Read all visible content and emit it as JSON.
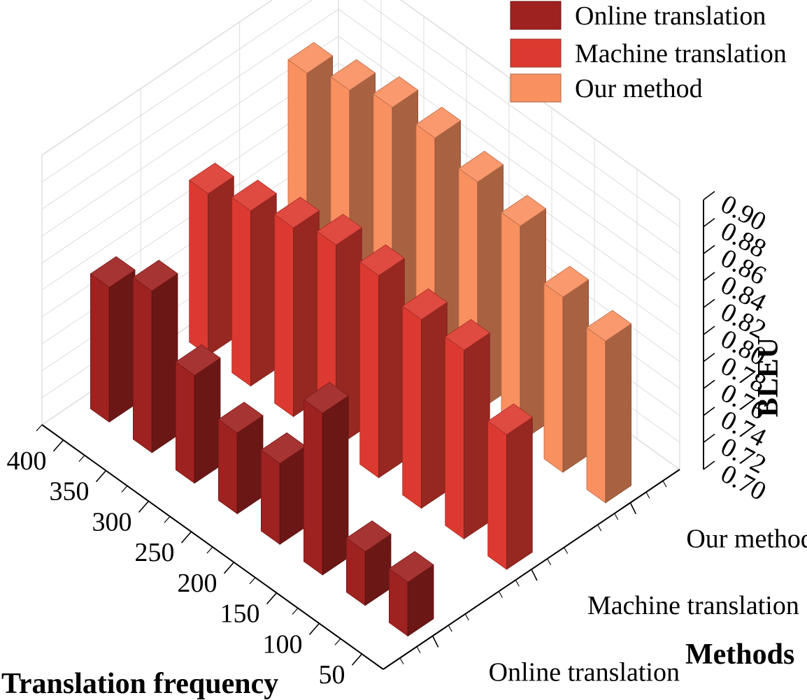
{
  "chart_data": {
    "type": "bar3d",
    "x_axis": {
      "title": "Translation frequency",
      "ticks": [
        "400",
        "350",
        "300",
        "250",
        "200",
        "150",
        "100",
        "50"
      ],
      "values": [
        400,
        350,
        300,
        250,
        200,
        150,
        100,
        50
      ]
    },
    "y_axis": {
      "title": "Methods",
      "categories": [
        "Online translation",
        "Machine translation",
        "Our method"
      ]
    },
    "z_axis": {
      "title": "BLEU",
      "ticks": [
        "0.70",
        "0.72",
        "0.74",
        "0.76",
        "0.78",
        "0.80",
        "0.82",
        "0.84",
        "0.86",
        "0.88",
        "0.90"
      ],
      "range": [
        0.7,
        0.9
      ]
    },
    "grid": true,
    "legend_position": "top-right",
    "series": [
      {
        "name": "Online translation",
        "color": "#9e2220",
        "x": [
          400,
          350,
          300,
          250,
          200,
          150,
          100,
          50
        ],
        "values": [
          0.8,
          0.82,
          0.78,
          0.76,
          0.76,
          0.82,
          0.74,
          0.74
        ]
      },
      {
        "name": "Machine translation",
        "color": "#dc3a30",
        "x": [
          400,
          350,
          300,
          250,
          200,
          150,
          100,
          50
        ],
        "values": [
          0.82,
          0.83,
          0.84,
          0.85,
          0.85,
          0.84,
          0.84,
          0.8
        ]
      },
      {
        "name": "Our method",
        "color": "#f99060",
        "x": [
          400,
          350,
          300,
          250,
          200,
          150,
          100,
          50
        ],
        "values": [
          0.86,
          0.87,
          0.88,
          0.88,
          0.87,
          0.86,
          0.83,
          0.82
        ]
      }
    ]
  }
}
